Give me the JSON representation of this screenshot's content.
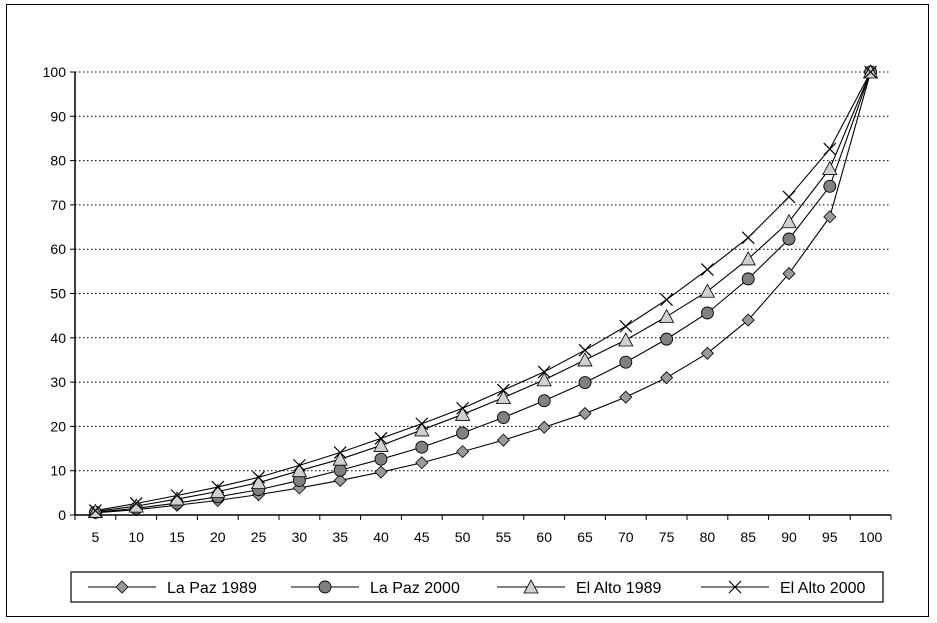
{
  "chart_data": {
    "type": "line",
    "title": "",
    "xlabel": "",
    "ylabel": "",
    "x": [
      5,
      10,
      15,
      20,
      25,
      30,
      35,
      40,
      45,
      50,
      55,
      60,
      65,
      70,
      75,
      80,
      85,
      90,
      95,
      100
    ],
    "ylim": [
      0,
      100
    ],
    "yticks": [
      0,
      10,
      20,
      30,
      40,
      50,
      60,
      70,
      80,
      90,
      100
    ],
    "grid": "horizontal dotted",
    "legend_position": "bottom",
    "series": [
      {
        "name": "La Paz 1989",
        "marker": "diamond",
        "color": "#9a9a9a",
        "values": [
          0.5,
          1.2,
          2.2,
          3.3,
          4.6,
          6.1,
          7.8,
          9.7,
          11.8,
          14.3,
          16.9,
          19.8,
          22.9,
          26.6,
          31.0,
          36.5,
          44.0,
          54.5,
          67.3,
          100
        ]
      },
      {
        "name": "La Paz 2000",
        "marker": "circle",
        "color": "#808080",
        "values": [
          0.6,
          1.5,
          2.7,
          4.1,
          5.7,
          7.8,
          10.1,
          12.6,
          15.3,
          18.5,
          22.0,
          25.8,
          29.9,
          34.5,
          39.7,
          45.6,
          53.3,
          62.3,
          74.2,
          100
        ]
      },
      {
        "name": "El Alto 1989",
        "marker": "triangle",
        "color": "#d0d0d0",
        "values": [
          0.8,
          2.0,
          3.6,
          5.3,
          7.3,
          10.0,
          12.6,
          15.7,
          19.2,
          22.7,
          26.5,
          30.5,
          35.0,
          39.5,
          44.8,
          50.5,
          57.8,
          66.2,
          78.2,
          100
        ]
      },
      {
        "name": "El Alto 2000",
        "marker": "cross",
        "color": "#000000",
        "values": [
          1.0,
          2.6,
          4.4,
          6.3,
          8.5,
          11.2,
          14.1,
          17.3,
          20.6,
          24.1,
          28.2,
          32.3,
          37.2,
          42.6,
          48.6,
          55.4,
          62.6,
          71.8,
          82.6,
          100
        ]
      }
    ]
  }
}
